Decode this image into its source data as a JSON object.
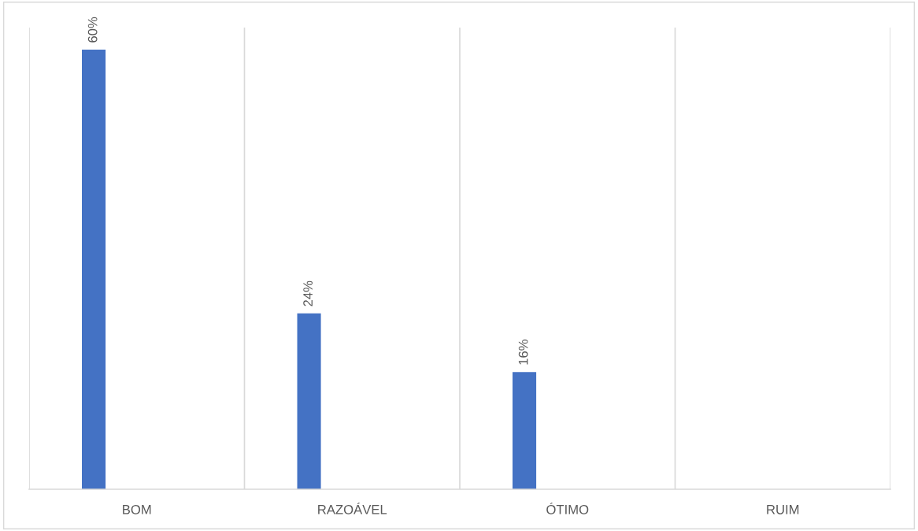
{
  "chart_data": {
    "type": "bar",
    "categories": [
      "BOM",
      "RAZOÁVEL",
      "ÓTIMO",
      "RUIM"
    ],
    "values": [
      60,
      24,
      16,
      null
    ],
    "color": "#4472c4",
    "value_labels": [
      "60%",
      "24%",
      "16%",
      null
    ],
    "grid": "x"
  }
}
